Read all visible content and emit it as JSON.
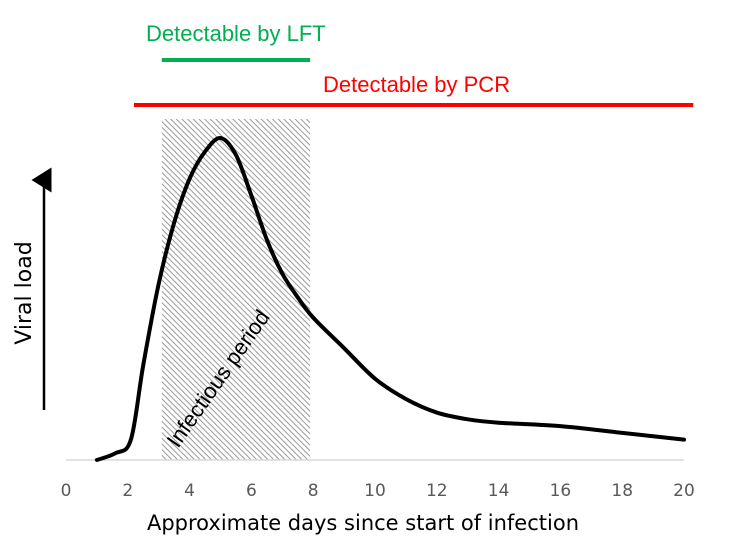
{
  "chart_data": {
    "type": "line",
    "title": "",
    "xlabel": "Approximate days since start of infection",
    "ylabel": "Viral load",
    "xlim": [
      0,
      20
    ],
    "ylim": [
      0,
      1
    ],
    "x_ticks": [
      0,
      2,
      4,
      6,
      8,
      10,
      12,
      14,
      16,
      18,
      20
    ],
    "x_tick_labels": [
      "0",
      "2",
      "4",
      "6",
      "8",
      "10",
      "12",
      "14",
      "16",
      "18",
      "20"
    ],
    "y_ticks_shown": false,
    "grid": false,
    "series": [
      {
        "name": "Viral load",
        "color": "#000000",
        "x": [
          1,
          1.6,
          2.1,
          2.5,
          3,
          3.5,
          4,
          4.5,
          5,
          5.5,
          6,
          6.5,
          7,
          7.5,
          8,
          9,
          10,
          11,
          12,
          13,
          14,
          16,
          18,
          20
        ],
        "y": [
          0.0,
          0.02,
          0.06,
          0.28,
          0.52,
          0.7,
          0.83,
          0.91,
          0.95,
          0.9,
          0.78,
          0.65,
          0.55,
          0.48,
          0.42,
          0.33,
          0.24,
          0.18,
          0.14,
          0.12,
          0.11,
          0.1,
          0.08,
          0.06
        ]
      }
    ],
    "detection_bars": [
      {
        "name": "Detectable by LFT",
        "color": "#00B050",
        "x_start": 3.1,
        "x_end": 7.9
      },
      {
        "name": "Detectable by PCR",
        "color": "#FF0000",
        "x_start": 2.2,
        "x_end": 20.3
      }
    ],
    "shaded_regions": [
      {
        "name": "Infectious period",
        "x_start": 3.1,
        "x_end": 7.9,
        "pattern": "diagonal-hatch",
        "color": "#A6A6A6"
      }
    ],
    "annotations": [
      {
        "text": "Detectable by LFT",
        "color": "#00B050"
      },
      {
        "text": "Detectable by PCR",
        "color": "#FF0000"
      },
      {
        "text": "Infectious period",
        "color": "#000000",
        "rotation_deg": -55
      }
    ],
    "legend": "none"
  }
}
